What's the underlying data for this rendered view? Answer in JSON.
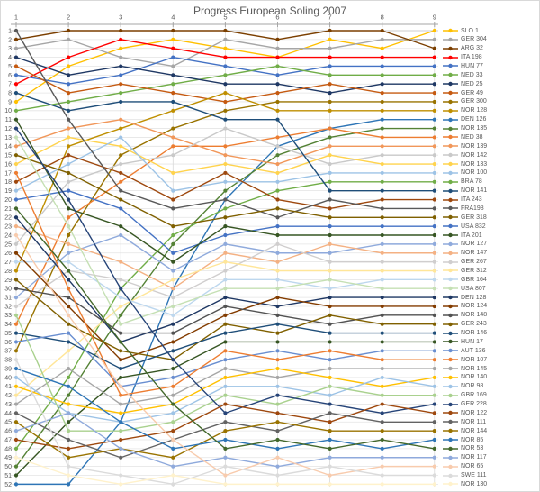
{
  "title": "Progress European Soling 2007",
  "chart_data": {
    "type": "line",
    "title": "Progress European Soling 2007",
    "xlabel": "",
    "ylabel": "",
    "x_ticks": [
      1,
      2,
      3,
      4,
      5,
      6,
      7,
      8,
      9
    ],
    "y_ticks": [
      1,
      2,
      3,
      4,
      5,
      6,
      7,
      8,
      9,
      10,
      11,
      12,
      13,
      14,
      15,
      16,
      17,
      18,
      19,
      20,
      21,
      22,
      23,
      24,
      25,
      26,
      27,
      28,
      29,
      30,
      31,
      32,
      33,
      34,
      35,
      36,
      37,
      38,
      39,
      40,
      41,
      42,
      43,
      44,
      45,
      46,
      47,
      48,
      49,
      50,
      51,
      52
    ],
    "y_axis_inverted": true,
    "ylim": [
      1,
      52
    ],
    "grid": true,
    "legend_position": "right",
    "axis_color": "#A6A6A6",
    "gridline_color": "#D9D9D9",
    "row_gridline_color": "#E4E4E4",
    "label_color": "#595959",
    "series": [
      {
        "name": "SLO 1",
        "color": "#FFC000",
        "values": [
          9,
          5,
          3,
          2,
          3,
          4,
          2,
          3,
          1
        ]
      },
      {
        "name": "GER 304",
        "color": "#A6A6A6",
        "values": [
          3,
          2,
          4,
          5,
          2,
          3,
          3,
          2,
          2
        ]
      },
      {
        "name": "ARG 32",
        "color": "#7B3F00",
        "values": [
          2,
          1,
          1,
          1,
          1,
          2,
          1,
          1,
          3
        ]
      },
      {
        "name": "ITA 198",
        "color": "#FF0000",
        "values": [
          7,
          4,
          2,
          3,
          4,
          4,
          4,
          4,
          4
        ]
      },
      {
        "name": "HUN 77",
        "color": "#4472C4",
        "values": [
          6,
          7,
          6,
          4,
          5,
          6,
          5,
          5,
          5
        ]
      },
      {
        "name": "NED 33",
        "color": "#70AD47",
        "values": [
          10,
          9,
          8,
          7,
          6,
          5,
          6,
          6,
          6
        ]
      },
      {
        "name": "NED 25",
        "color": "#1F3864",
        "values": [
          4,
          6,
          5,
          6,
          7,
          7,
          8,
          7,
          7
        ]
      },
      {
        "name": "GER 49",
        "color": "#C55A11",
        "values": [
          5,
          8,
          7,
          8,
          9,
          8,
          7,
          8,
          8
        ]
      },
      {
        "name": "GER 300",
        "color": "#997300",
        "values": [
          37,
          24,
          15,
          12,
          10,
          9,
          9,
          9,
          9
        ]
      },
      {
        "name": "NOR 128",
        "color": "#BF8F00",
        "values": [
          28,
          14,
          12,
          10,
          8,
          10,
          10,
          10,
          10
        ]
      },
      {
        "name": "DEN 126",
        "color": "#2E75B6",
        "values": [
          52,
          52,
          45,
          30,
          20,
          14,
          12,
          11,
          11
        ]
      },
      {
        "name": "NOR 135",
        "color": "#548235",
        "values": [
          50,
          42,
          33,
          25,
          19,
          15,
          13,
          12,
          12
        ]
      },
      {
        "name": "NED 38",
        "color": "#ED7D31",
        "values": [
          34,
          22,
          18,
          14,
          14,
          13,
          12,
          13,
          13
        ]
      },
      {
        "name": "NOR 139",
        "color": "#F1975A",
        "values": [
          14,
          12,
          11,
          13,
          15,
          16,
          14,
          14,
          14
        ]
      },
      {
        "name": "NOR 142",
        "color": "#C9C9C9",
        "values": [
          25,
          18,
          16,
          15,
          12,
          14,
          16,
          15,
          15
        ]
      },
      {
        "name": "NOR 133",
        "color": "#FFD34D",
        "values": [
          16,
          13,
          14,
          17,
          16,
          17,
          15,
          16,
          16
        ]
      },
      {
        "name": "NOR 100",
        "color": "#9DC3E6",
        "values": [
          19,
          16,
          13,
          19,
          18,
          18,
          17,
          17,
          17
        ]
      },
      {
        "name": "BRA 78",
        "color": "#70AD47",
        "values": [
          48,
          40,
          30,
          24,
          21,
          19,
          18,
          18,
          18
        ]
      },
      {
        "name": "NOR 141",
        "color": "#1F4E79",
        "values": [
          8,
          10,
          9,
          9,
          11,
          11,
          19,
          19,
          19
        ]
      },
      {
        "name": "ITA 243",
        "color": "#9E480E",
        "values": [
          18,
          15,
          17,
          20,
          17,
          20,
          21,
          20,
          20
        ]
      },
      {
        "name": "FRA198",
        "color": "#595959",
        "values": [
          1,
          11,
          19,
          21,
          20,
          22,
          20,
          21,
          21
        ]
      },
      {
        "name": "GER 318",
        "color": "#7F6000",
        "values": [
          15,
          17,
          20,
          23,
          22,
          21,
          22,
          22,
          22
        ]
      },
      {
        "name": "USA 832",
        "color": "#4472C4",
        "values": [
          20,
          19,
          21,
          26,
          24,
          23,
          23,
          23,
          23
        ]
      },
      {
        "name": "ITA 201",
        "color": "#375623",
        "values": [
          11,
          21,
          23,
          27,
          23,
          24,
          24,
          24,
          24
        ]
      },
      {
        "name": "NOR 127",
        "color": "#8FAADC",
        "values": [
          31,
          26,
          24,
          28,
          25,
          26,
          26,
          25,
          25
        ]
      },
      {
        "name": "NOR 147",
        "color": "#F4B183",
        "values": [
          23,
          25,
          27,
          30,
          26,
          27,
          25,
          26,
          26
        ]
      },
      {
        "name": "GER 267",
        "color": "#D0CECE",
        "values": [
          32,
          28,
          29,
          31,
          28,
          25,
          27,
          27,
          27
        ]
      },
      {
        "name": "GER 312",
        "color": "#FFE699",
        "values": [
          42,
          37,
          32,
          29,
          27,
          28,
          28,
          28,
          28
        ]
      },
      {
        "name": "GBR 164",
        "color": "#BDD7EE",
        "values": [
          27,
          27,
          31,
          33,
          29,
          29,
          30,
          29,
          29
        ]
      },
      {
        "name": "USA 807",
        "color": "#C5E0B4",
        "values": [
          13,
          23,
          34,
          32,
          30,
          30,
          29,
          30,
          30
        ]
      },
      {
        "name": "DEN 128",
        "color": "#1F3864",
        "values": [
          22,
          29,
          36,
          34,
          31,
          32,
          31,
          31,
          31
        ]
      },
      {
        "name": "NOR 124",
        "color": "#833C00",
        "values": [
          26,
          32,
          38,
          36,
          33,
          31,
          32,
          32,
          32
        ]
      },
      {
        "name": "NOR 148",
        "color": "#525252",
        "values": [
          30,
          31,
          35,
          35,
          32,
          33,
          34,
          33,
          33
        ]
      },
      {
        "name": "GER 243",
        "color": "#806000",
        "values": [
          29,
          34,
          37,
          38,
          34,
          35,
          33,
          34,
          34
        ]
      },
      {
        "name": "NOR 146",
        "color": "#1F4E79",
        "values": [
          35,
          36,
          39,
          37,
          35,
          34,
          35,
          35,
          35
        ]
      },
      {
        "name": "HUN 17",
        "color": "#375623",
        "values": [
          51,
          45,
          40,
          39,
          36,
          36,
          36,
          36,
          36
        ]
      },
      {
        "name": "AUT 136",
        "color": "#698ED0",
        "values": [
          36,
          35,
          41,
          40,
          38,
          37,
          38,
          37,
          37
        ]
      },
      {
        "name": "NOR 107",
        "color": "#ED7D31",
        "values": [
          17,
          30,
          42,
          41,
          37,
          38,
          37,
          38,
          38
        ]
      },
      {
        "name": "NOR 145",
        "color": "#A6A6A6",
        "values": [
          43,
          39,
          43,
          42,
          39,
          40,
          39,
          39,
          39
        ]
      },
      {
        "name": "NOR 140",
        "color": "#FFC000",
        "values": [
          41,
          43,
          44,
          43,
          40,
          39,
          40,
          41,
          40
        ]
      },
      {
        "name": "NOR 98",
        "color": "#9DC3E6",
        "values": [
          40,
          44,
          45,
          44,
          41,
          41,
          42,
          40,
          41
        ]
      },
      {
        "name": "GBR 169",
        "color": "#A9D18E",
        "values": [
          33,
          46,
          46,
          45,
          42,
          43,
          41,
          42,
          42
        ]
      },
      {
        "name": "GER 228",
        "color": "#264478",
        "values": [
          12,
          20,
          30,
          38,
          44,
          42,
          43,
          44,
          43
        ]
      },
      {
        "name": "NOR 122",
        "color": "#9E480E",
        "values": [
          47,
          48,
          47,
          46,
          43,
          44,
          45,
          43,
          44
        ]
      },
      {
        "name": "NOR 111",
        "color": "#636363",
        "values": [
          44,
          47,
          49,
          47,
          45,
          46,
          44,
          45,
          45
        ]
      },
      {
        "name": "NOR 144",
        "color": "#997300",
        "values": [
          45,
          49,
          48,
          49,
          46,
          45,
          46,
          46,
          46
        ]
      },
      {
        "name": "NOR 85",
        "color": "#2E75B6",
        "values": [
          39,
          41,
          45,
          48,
          47,
          48,
          47,
          48,
          47
        ]
      },
      {
        "name": "NOR 53",
        "color": "#43682B",
        "values": [
          21,
          28,
          36,
          43,
          48,
          47,
          48,
          47,
          48
        ]
      },
      {
        "name": "NOR 117",
        "color": "#8FAADC",
        "values": [
          46,
          44,
          48,
          50,
          49,
          50,
          49,
          49,
          49
        ]
      },
      {
        "name": "NOR 65",
        "color": "#F8CBAD",
        "values": [
          24,
          33,
          41,
          47,
          51,
          49,
          51,
          50,
          50
        ]
      },
      {
        "name": "SWE 111",
        "color": "#DBDBDB",
        "values": [
          38,
          50,
          51,
          52,
          50,
          51,
          50,
          51,
          51
        ]
      },
      {
        "name": "NOR 130",
        "color": "#FFF2CC",
        "values": [
          49,
          51,
          52,
          51,
          52,
          52,
          52,
          52,
          52
        ]
      }
    ]
  }
}
